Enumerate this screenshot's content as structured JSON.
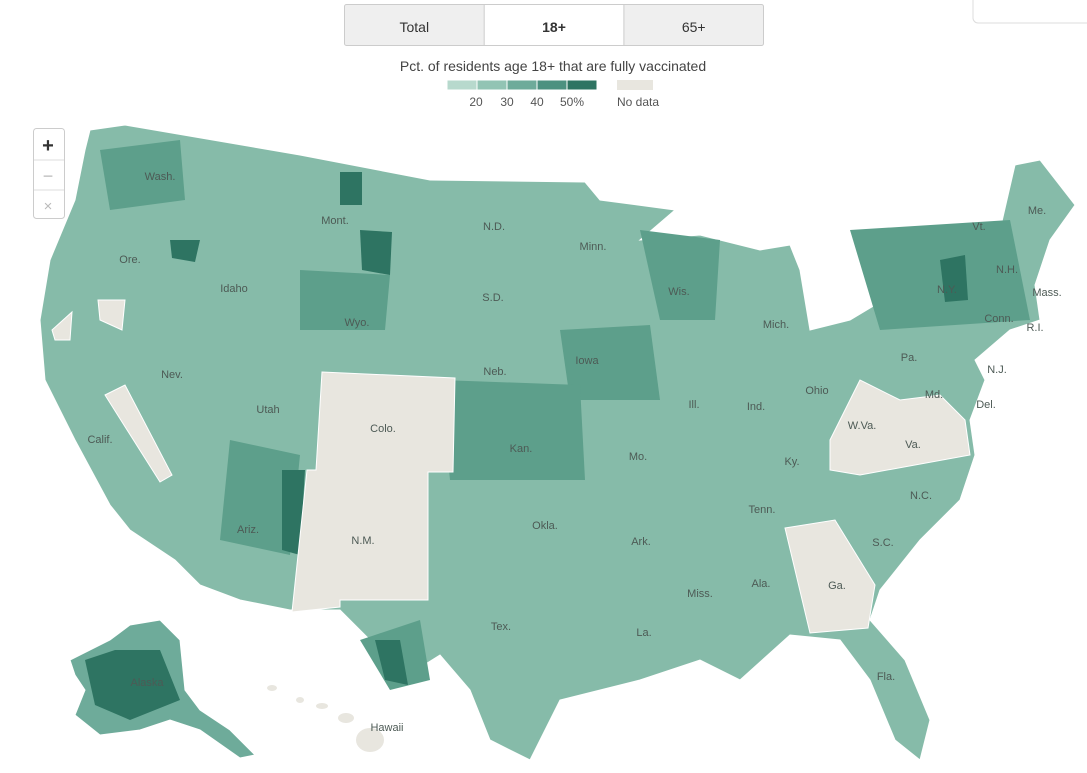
{
  "tabs": [
    "Total",
    "18+",
    "65+"
  ],
  "selected_tab": 1,
  "legend": {
    "title": "Pct. of residents age 18+ that are fully vaccinated",
    "labels": [
      "20",
      "30",
      "40",
      "50%"
    ],
    "colors": [
      "#b7d9cd",
      "#92c4b4",
      "#6eab9a",
      "#4c9180",
      "#2e7462"
    ],
    "no_data_label": "No data",
    "no_data_color": "#e8e6df"
  },
  "zoom_controls": [
    "+",
    "−",
    "×"
  ],
  "state_labels": [
    "Wash.",
    "Ore.",
    "Calif.",
    "Idaho",
    "Nev.",
    "Mont.",
    "Wyo.",
    "Utah",
    "Colo.",
    "Ariz.",
    "N.M.",
    "N.D.",
    "S.D.",
    "Neb.",
    "Kan.",
    "Okla.",
    "Tex.",
    "Minn.",
    "Iowa",
    "Mo.",
    "Ark.",
    "La.",
    "Wis.",
    "Ill.",
    "Mich.",
    "Ind.",
    "Ohio",
    "Ky.",
    "Tenn.",
    "Miss.",
    "Ala.",
    "Ga.",
    "Fla.",
    "S.C.",
    "N.C.",
    "Va.",
    "W.Va.",
    "Pa.",
    "N.Y.",
    "Vt.",
    "N.H.",
    "Me.",
    "Mass.",
    "R.I.",
    "Conn.",
    "N.J.",
    "Del.",
    "Md.",
    "Alaska",
    "Hawaii"
  ]
}
